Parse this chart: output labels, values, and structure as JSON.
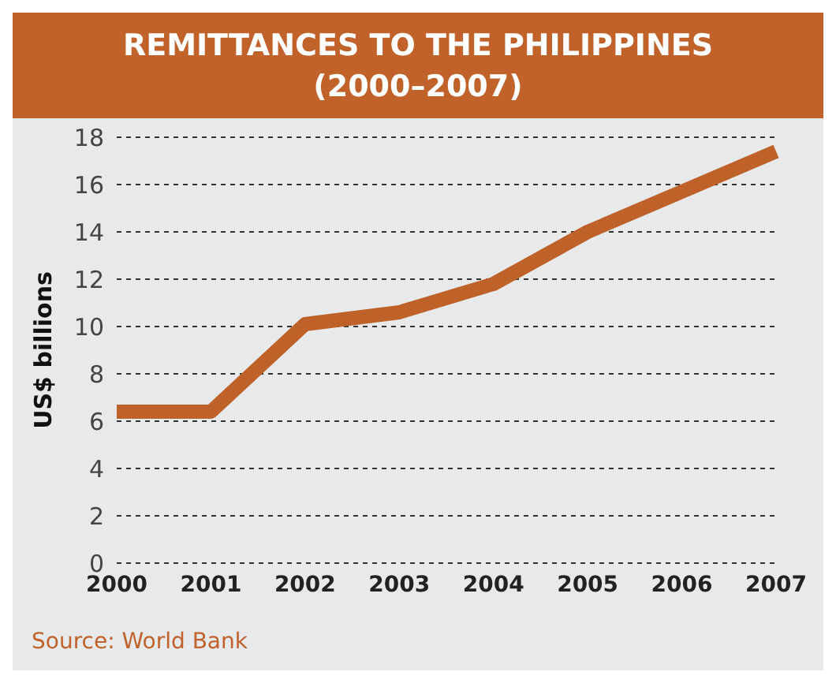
{
  "chart_data": {
    "type": "line",
    "title": "REMITTANCES TO THE PHILIPPINES",
    "subtitle": "(2000–2007)",
    "ylabel": "US$ billions",
    "categories": [
      "2000",
      "2001",
      "2002",
      "2003",
      "2004",
      "2005",
      "2006",
      "2007"
    ],
    "series": [
      {
        "color": "#bf622a",
        "values": [
          6.4,
          6.4,
          10.1,
          10.6,
          11.8,
          14.0,
          15.7,
          17.4
        ]
      }
    ],
    "ylim": [
      0,
      18
    ],
    "yticks": [
      0,
      2,
      4,
      6,
      8,
      10,
      12,
      14,
      16,
      18
    ],
    "grid": "y",
    "marker": "none",
    "line_style": "solid",
    "annotations": [
      "Source: World Bank"
    ]
  }
}
